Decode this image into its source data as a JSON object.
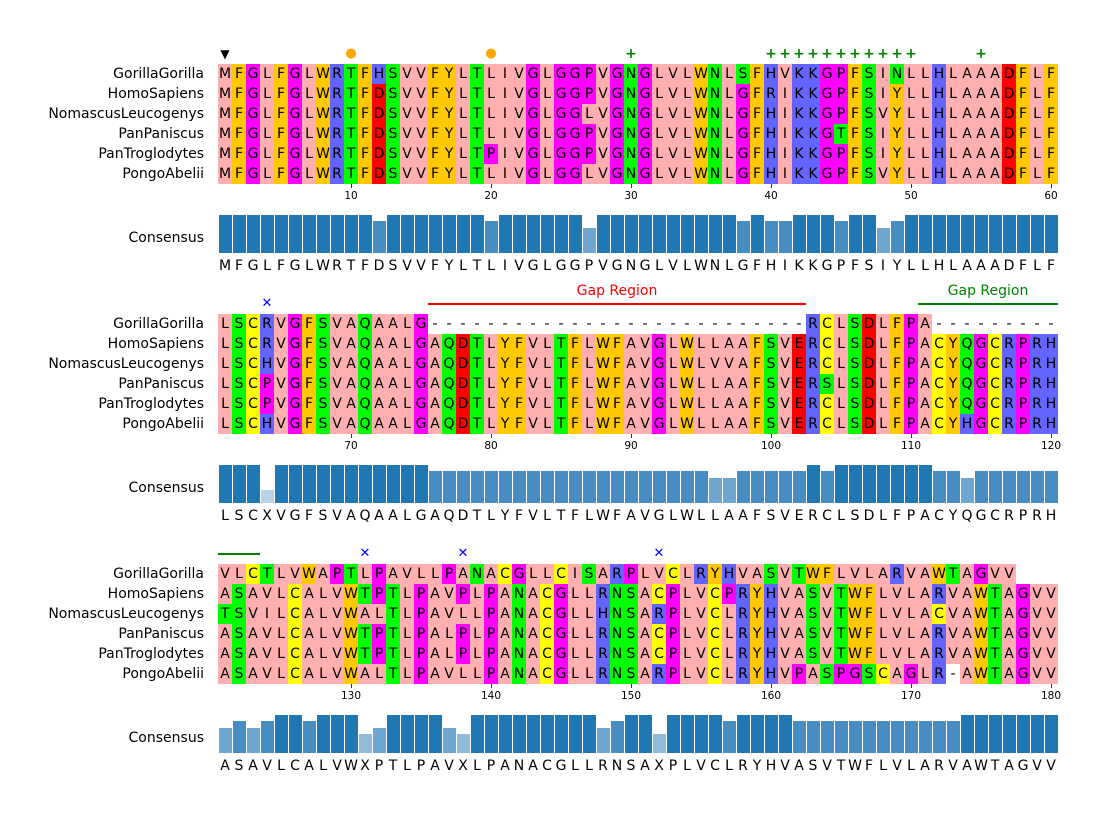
{
  "colors": {
    "aliphatic": "#ffafaf",
    "aromatic": "#ffc800",
    "positive": "#6464ff",
    "negative": "#ff0000",
    "hydrophilic": "#00ff00",
    "conformational": "#ff00ff",
    "cysteine": "#ffff00",
    "gap": "#ffffff",
    "consensus_bar": "#1f77b4"
  },
  "color_groups": {
    "aliphatic": "ILVAM",
    "aromatic": "FWY",
    "positive": "KRH",
    "negative": "DE",
    "hydrophilic": "STNQ",
    "conformational": "PG",
    "cysteine": "C"
  },
  "consensus_label": "Consensus",
  "sequences": [
    {
      "name": "GorillaGorilla",
      "seq": "MFGLFGLWRTFHSVVFYLTLIVGLGGPVGNGLVLWNLSFHVKKGPFSINLLHLAAADFLFLSCRVGFSVAQAALG---------------------------RCLSDLFPA---------VLCTLVWAPTLPAVLLPANACGLLCISARPLVCLRYHVASVTWFLVLARVAWTAGVV"
    },
    {
      "name": "HomoSapiens",
      "seq": "MFGLFGLWRTFDSVVFYLTLIVGLGGPVGNGLVLWNLGFRIKKGPFSIYLLHLAAADFLFLSCRVGFSVAQAALGAQDTLYFVLTFLWFAVGLWLLAAFSVERCLSDLFPACYQGCRPRHASAVLCALVWTPTLPAVPLPANACGLLRNSACPLVCPRYHVASVTWFLVLARVAWTAGVV"
    },
    {
      "name": "NomascusLeucogenys",
      "seq": "MFGLFGLWRTFDSVVFYLTLIVGLGGLVGNGLVLWNLGFHIKKGPFSVYLLHLAAADFLFLSCHVGFSVAQAALGAQDTLYFVLTFLWFAVGLWLVVAFSVERCLSDLFPACYQGCRPRHTSVILCALVWALTLPAVLLPANACGLLHNSARPLVCLRYHVASVTWFLVLACVAWTAGVV"
    },
    {
      "name": "PanPaniscus",
      "seq": "MFGLFGLWRTFDSVVFYLTLIVGLGGPVGNGLVLWNLGFHIKKGTFSIYLLHLAAADFLFLSCPVGFSVAQAALGAQDTLYFVLTFLWFAVGLWLLAAFSVERSLSDLFPACYQGCRPRHASAVLCALVWTPTLPALPLPANACGLLRNSACPLVCLRYHVASVTWFLVLARVAWTAGVV"
    },
    {
      "name": "PanTroglodytes",
      "seq": "MFGLFGLWRTFDSVVFYLTPIVGLGGPVGNGLVLWNLGFHIKKGPFSIYLLHLAAADFLFLSCPVGFSVAQAALGAQDTLYFVLTFLWFAVGLWLLAAFSVERCLSDLFPACYQGCRPRHASAVLCALVWTPTLPALPLPANACGLLRNSACPLVCLRYHVASVTWFLVLARVAWTAGVV"
    },
    {
      "name": "PongoAbelii",
      "seq": "MFGLFGLWRTFDSVVFYLTLIVGLGGLVGNGLVLWNLGFHIKKGPFSVYLLHLAAADFLFLSCHVGFSVAQAALGAQDTLYFVLTFLWFAVGLWLLAAFSVERCLSDLFPACYHGCRPRHASAVLCALVWALTLPAVLLPANACGLLRNSARPLVCLRYHVPASPGSCAGLR-AWTAGVV"
    }
  ],
  "consensus": "MFGLFGLWRTFDSVVFYLTLIVGLGGPVGNGLVLWNLGFHIKKGPFSIYLLHLAAADFLFLSCXVGFSVAQAALGAQDTLYFVLTFLWFAVGLWLLAAFSVERCLSDLFPACYQGCRPRHASAVLCALVWXPTLPAVXLPANACGLLRNSAXPLVCLRYHVASVTWFLVLARVAWTAGVV",
  "consensus_identity_percent": [
    100,
    100,
    100,
    100,
    100,
    100,
    100,
    100,
    100,
    100,
    100,
    83,
    100,
    100,
    100,
    100,
    100,
    100,
    100,
    83,
    100,
    100,
    100,
    100,
    100,
    100,
    67,
    100,
    100,
    100,
    100,
    100,
    100,
    100,
    100,
    100,
    100,
    83,
    100,
    83,
    83,
    100,
    100,
    100,
    83,
    100,
    100,
    67,
    83,
    100,
    100,
    100,
    100,
    100,
    100,
    100,
    100,
    100,
    100,
    100,
    100,
    100,
    100,
    33,
    100,
    100,
    100,
    100,
    100,
    100,
    100,
    100,
    100,
    100,
    100,
    83,
    83,
    83,
    83,
    83,
    83,
    83,
    83,
    83,
    83,
    83,
    83,
    83,
    83,
    83,
    83,
    83,
    83,
    83,
    83,
    67,
    67,
    83,
    83,
    83,
    83,
    83,
    100,
    83,
    100,
    100,
    100,
    100,
    100,
    100,
    100,
    83,
    83,
    67,
    83,
    83,
    83,
    83,
    83,
    83,
    67,
    83,
    67,
    83,
    100,
    100,
    83,
    100,
    100,
    100,
    50,
    67,
    100,
    100,
    100,
    100,
    67,
    50,
    100,
    100,
    100,
    100,
    100,
    100,
    100,
    100,
    100,
    67,
    83,
    100,
    100,
    50,
    100,
    100,
    100,
    100,
    83,
    100,
    100,
    100,
    100,
    83,
    83,
    83,
    83,
    83,
    83,
    83,
    83,
    83,
    83,
    83,
    83,
    100,
    100,
    100,
    100,
    100,
    100,
    100
  ],
  "block_length": 60,
  "tick_interval": 10,
  "markers": [
    {
      "col": 1,
      "shape": "triangle-down",
      "color": "#000000"
    },
    {
      "col": 10,
      "shape": "circle",
      "color": "#ffa500"
    },
    {
      "col": 20,
      "shape": "circle",
      "color": "#ffa500"
    },
    {
      "col": 30,
      "shape": "plus",
      "color": "#008000"
    },
    {
      "col": 40,
      "shape": "plus",
      "color": "#008000"
    },
    {
      "col": 41,
      "shape": "plus",
      "color": "#008000"
    },
    {
      "col": 42,
      "shape": "plus",
      "color": "#008000"
    },
    {
      "col": 43,
      "shape": "plus",
      "color": "#008000"
    },
    {
      "col": 44,
      "shape": "plus",
      "color": "#008000"
    },
    {
      "col": 45,
      "shape": "plus",
      "color": "#008000"
    },
    {
      "col": 46,
      "shape": "plus",
      "color": "#008000"
    },
    {
      "col": 47,
      "shape": "plus",
      "color": "#008000"
    },
    {
      "col": 48,
      "shape": "plus",
      "color": "#008000"
    },
    {
      "col": 49,
      "shape": "plus",
      "color": "#008000"
    },
    {
      "col": 50,
      "shape": "plus",
      "color": "#008000"
    },
    {
      "col": 55,
      "shape": "plus",
      "color": "#008000"
    },
    {
      "col": 64,
      "shape": "x",
      "color": "#0000ff"
    },
    {
      "col": 131,
      "shape": "x",
      "color": "#0000ff"
    },
    {
      "col": 138,
      "shape": "x",
      "color": "#0000ff"
    },
    {
      "col": 152,
      "shape": "x",
      "color": "#0000ff"
    }
  ],
  "regions": [
    {
      "start": 76,
      "end": 102,
      "label": "Gap Region",
      "color": "#ff0000"
    },
    {
      "start": 111,
      "end": 123,
      "label": "Gap Region",
      "color": "#008000"
    }
  ]
}
